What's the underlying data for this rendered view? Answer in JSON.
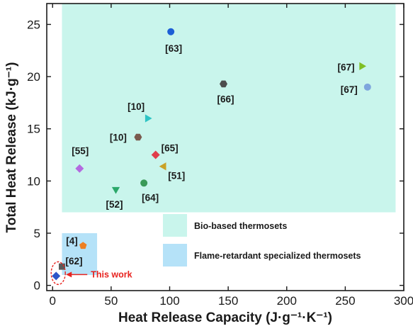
{
  "chart_data": {
    "type": "scatter",
    "xlabel": "Heat Release Capacity (J·g⁻¹·K⁻¹)",
    "ylabel": "Total Heat Release (kJ·g⁻¹)",
    "xlim": [
      -5,
      300
    ],
    "ylim": [
      -0.5,
      27
    ],
    "xticks": [
      0,
      50,
      100,
      150,
      200,
      250,
      300
    ],
    "yticks": [
      0,
      5,
      10,
      15,
      20,
      25
    ],
    "grid": false,
    "regions": [
      {
        "name": "Bio-based thermosets",
        "color": "#c9f5ec",
        "x": [
          8,
          293
        ],
        "y": [
          7,
          27
        ]
      },
      {
        "name": "Flame-retardant specialized thermosets",
        "color": "#b5e2f8",
        "x": [
          8,
          38
        ],
        "y": [
          1,
          5
        ]
      }
    ],
    "points": [
      {
        "label": "[63]",
        "x": 101,
        "y": 24.3,
        "marker": "circle",
        "color": "#1d5fd6"
      },
      {
        "label": "[67]",
        "x": 264,
        "y": 21.0,
        "marker": "triangle-right",
        "color": "#7fbf24"
      },
      {
        "label": "[67]",
        "x": 269,
        "y": 19.0,
        "marker": "circle",
        "color": "#7ea6dd"
      },
      {
        "label": "[66]",
        "x": 146,
        "y": 19.3,
        "marker": "hexagon",
        "color": "#4d4d4d"
      },
      {
        "label": "[10]",
        "x": 81,
        "y": 16.0,
        "marker": "triangle-right",
        "color": "#2ec4c4"
      },
      {
        "label": "[10]",
        "x": 73,
        "y": 14.2,
        "marker": "hexagon",
        "color": "#7a5a4e"
      },
      {
        "label": "[65]",
        "x": 88,
        "y": 12.5,
        "marker": "diamond",
        "color": "#e03d4a"
      },
      {
        "label": "[51]",
        "x": 95,
        "y": 11.4,
        "marker": "triangle-left",
        "color": "#c9a227"
      },
      {
        "label": "[55]",
        "x": 23,
        "y": 11.2,
        "marker": "diamond",
        "color": "#b36ae0"
      },
      {
        "label": "[64]",
        "x": 78,
        "y": 9.8,
        "marker": "circle",
        "color": "#3a9a58"
      },
      {
        "label": "[52]",
        "x": 54,
        "y": 9.2,
        "marker": "triangle-down",
        "color": "#2aa86a"
      },
      {
        "label": "[4]",
        "x": 26,
        "y": 3.8,
        "marker": "pentagon",
        "color": "#ee7f22"
      },
      {
        "label": "[62]",
        "x": 8,
        "y": 1.8,
        "marker": "square",
        "color": "#5a5a5a"
      },
      {
        "label": "This work",
        "x": 3,
        "y": 0.9,
        "marker": "diamond",
        "color": "#2e56c8"
      }
    ],
    "annotation": "This work"
  }
}
